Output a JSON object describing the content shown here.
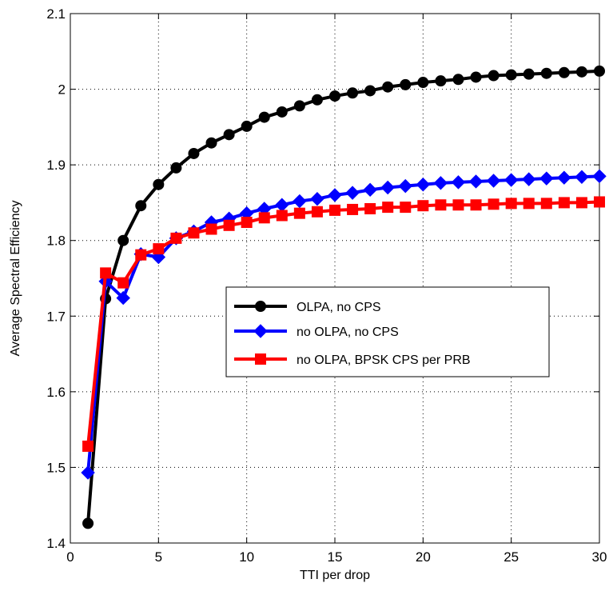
{
  "chart_data": {
    "type": "line",
    "title": "",
    "xlabel": "TTI per drop",
    "ylabel": "Average Spectral Efficiency",
    "xlim": [
      0,
      30
    ],
    "ylim": [
      1.4,
      2.1
    ],
    "xticks": [
      0,
      5,
      10,
      15,
      20,
      25,
      30
    ],
    "yticks": [
      1.4,
      1.5,
      1.6,
      1.7,
      1.8,
      1.9,
      2.0,
      2.1
    ],
    "xtick_labels": [
      "0",
      "5",
      "10",
      "15",
      "20",
      "25",
      "30"
    ],
    "ytick_labels": [
      "1.4",
      "1.5",
      "1.6",
      "1.7",
      "1.8",
      "1.9",
      "2",
      "2.1"
    ],
    "grid": true,
    "legend_position": "center-right",
    "x": [
      1,
      2,
      3,
      4,
      5,
      6,
      7,
      8,
      9,
      10,
      11,
      12,
      13,
      14,
      15,
      16,
      17,
      18,
      19,
      20,
      21,
      22,
      23,
      24,
      25,
      26,
      27,
      28,
      29,
      30
    ],
    "series": [
      {
        "name": "OLPA, no CPS",
        "color": "#000000",
        "marker": "circle",
        "values": [
          1.426,
          1.723,
          1.8,
          1.846,
          1.874,
          1.896,
          1.915,
          1.929,
          1.94,
          1.951,
          1.963,
          1.97,
          1.978,
          1.986,
          1.991,
          1.995,
          1.998,
          2.003,
          2.006,
          2.009,
          2.011,
          2.013,
          2.016,
          2.018,
          2.019,
          2.02,
          2.021,
          2.022,
          2.023,
          2.024
        ]
      },
      {
        "name": "no OLPA, no CPS",
        "color": "#0000ff",
        "marker": "diamond",
        "values": [
          1.493,
          1.746,
          1.724,
          1.782,
          1.778,
          1.803,
          1.812,
          1.824,
          1.829,
          1.836,
          1.842,
          1.847,
          1.852,
          1.855,
          1.86,
          1.863,
          1.867,
          1.87,
          1.872,
          1.874,
          1.876,
          1.877,
          1.878,
          1.879,
          1.88,
          1.881,
          1.882,
          1.883,
          1.884,
          1.885
        ]
      },
      {
        "name": "no OLPA, BPSK CPS per PRB",
        "color": "#ff0000",
        "marker": "square",
        "values": [
          1.528,
          1.757,
          1.744,
          1.781,
          1.789,
          1.803,
          1.81,
          1.815,
          1.82,
          1.824,
          1.83,
          1.833,
          1.836,
          1.838,
          1.84,
          1.841,
          1.842,
          1.844,
          1.844,
          1.846,
          1.847,
          1.847,
          1.847,
          1.848,
          1.849,
          1.849,
          1.849,
          1.85,
          1.85,
          1.851
        ]
      }
    ]
  }
}
